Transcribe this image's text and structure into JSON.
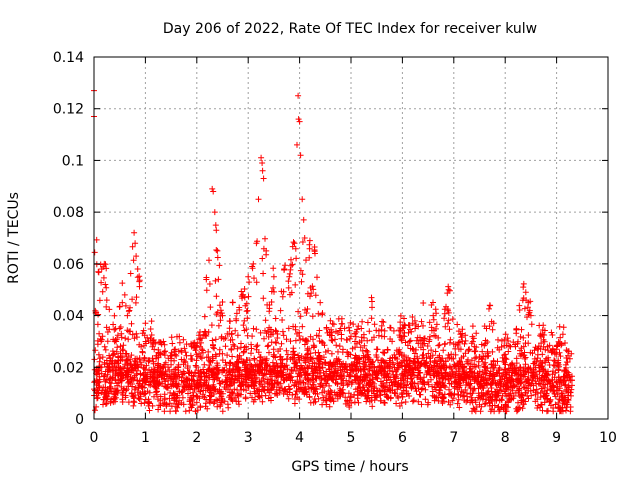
{
  "chart_data": {
    "type": "scatter",
    "title": "Day 206 of 2022, Rate Of TEC Index for receiver kulw",
    "xlabel": "GPS time / hours",
    "ylabel": "ROTI / TECUs",
    "xlim": [
      0,
      10
    ],
    "ylim": [
      0,
      0.14
    ],
    "xticks": [
      "0",
      "1",
      "2",
      "3",
      "4",
      "5",
      "6",
      "7",
      "8",
      "9",
      "10"
    ],
    "yticks": [
      "0",
      "0.02",
      "0.04",
      "0.06",
      "0.08",
      "0.1",
      "0.12",
      "0.14"
    ],
    "grid": true,
    "marker": "+",
    "colors": {
      "points": "#ff0000",
      "grid": "#a0a0a0",
      "axes": "#000000"
    },
    "x_data_extent": [
      0,
      9.3
    ],
    "series": [
      {
        "points": [
          [
            0.0,
            0.127
          ],
          [
            0.0,
            0.117
          ],
          [
            0.02,
            0.011
          ],
          [
            0.05,
            0.009
          ],
          [
            0.1,
            0.033
          ],
          [
            0.15,
            0.058
          ],
          [
            0.2,
            0.06
          ],
          [
            0.22,
            0.052
          ],
          [
            0.25,
            0.046
          ],
          [
            0.3,
            0.02
          ],
          [
            0.4,
            0.03
          ],
          [
            0.5,
            0.035
          ],
          [
            0.55,
            0.045
          ],
          [
            0.6,
            0.048
          ],
          [
            0.65,
            0.04
          ],
          [
            0.7,
            0.043
          ],
          [
            0.78,
            0.072
          ],
          [
            0.8,
            0.068
          ],
          [
            0.82,
            0.063
          ],
          [
            0.85,
            0.058
          ],
          [
            0.9,
            0.022
          ],
          [
            1.0,
            0.037
          ],
          [
            1.1,
            0.031
          ],
          [
            1.3,
            0.025
          ],
          [
            1.5,
            0.021
          ],
          [
            1.7,
            0.023
          ],
          [
            1.9,
            0.028
          ],
          [
            2.1,
            0.027
          ],
          [
            2.3,
            0.089
          ],
          [
            2.32,
            0.088
          ],
          [
            2.35,
            0.08
          ],
          [
            2.37,
            0.075
          ],
          [
            2.38,
            0.073
          ],
          [
            2.4,
            0.065
          ],
          [
            2.42,
            0.054
          ],
          [
            2.45,
            0.044
          ],
          [
            2.5,
            0.04
          ],
          [
            2.7,
            0.045
          ],
          [
            2.9,
            0.048
          ],
          [
            3.0,
            0.055
          ],
          [
            3.1,
            0.06
          ],
          [
            3.2,
            0.085
          ],
          [
            3.25,
            0.101
          ],
          [
            3.27,
            0.099
          ],
          [
            3.28,
            0.096
          ],
          [
            3.3,
            0.093
          ],
          [
            3.35,
            0.065
          ],
          [
            3.5,
            0.055
          ],
          [
            3.7,
            0.058
          ],
          [
            3.8,
            0.055
          ],
          [
            3.9,
            0.068
          ],
          [
            3.95,
            0.106
          ],
          [
            3.97,
            0.125
          ],
          [
            3.98,
            0.116
          ],
          [
            4.0,
            0.115
          ],
          [
            4.02,
            0.102
          ],
          [
            4.05,
            0.085
          ],
          [
            4.08,
            0.077
          ],
          [
            4.1,
            0.07
          ],
          [
            4.2,
            0.069
          ],
          [
            4.3,
            0.064
          ],
          [
            4.4,
            0.045
          ],
          [
            4.6,
            0.038
          ],
          [
            4.8,
            0.035
          ],
          [
            5.0,
            0.032
          ],
          [
            5.2,
            0.035
          ],
          [
            5.4,
            0.039
          ],
          [
            5.6,
            0.032
          ],
          [
            5.8,
            0.03
          ],
          [
            6.0,
            0.035
          ],
          [
            6.2,
            0.037
          ],
          [
            6.4,
            0.036
          ],
          [
            6.6,
            0.04
          ],
          [
            6.9,
            0.05
          ],
          [
            7.1,
            0.034
          ],
          [
            7.4,
            0.028
          ],
          [
            7.7,
            0.044
          ],
          [
            8.0,
            0.025
          ],
          [
            8.2,
            0.028
          ],
          [
            8.35,
            0.051
          ],
          [
            8.4,
            0.049
          ],
          [
            8.45,
            0.045
          ],
          [
            8.5,
            0.04
          ],
          [
            8.7,
            0.032
          ],
          [
            8.9,
            0.026
          ],
          [
            9.1,
            0.029
          ],
          [
            9.2,
            0.022
          ],
          [
            9.3,
            0.015
          ]
        ],
        "dense_band": {
          "x_range": [
            0,
            9.3
          ],
          "baseline_profile": [
            [
              0.0,
              0.013
            ],
            [
              0.5,
              0.016
            ],
            [
              1.0,
              0.014
            ],
            [
              1.5,
              0.012
            ],
            [
              2.0,
              0.012
            ],
            [
              2.5,
              0.013
            ],
            [
              3.0,
              0.015
            ],
            [
              3.5,
              0.016
            ],
            [
              4.0,
              0.016
            ],
            [
              4.5,
              0.015
            ],
            [
              5.0,
              0.014
            ],
            [
              5.5,
              0.015
            ],
            [
              6.0,
              0.016
            ],
            [
              6.5,
              0.016
            ],
            [
              7.0,
              0.014
            ],
            [
              7.5,
              0.012
            ],
            [
              8.0,
              0.011
            ],
            [
              8.5,
              0.013
            ],
            [
              9.0,
              0.012
            ],
            [
              9.3,
              0.011
            ]
          ],
          "y_min": 0.003
        }
      }
    ]
  }
}
